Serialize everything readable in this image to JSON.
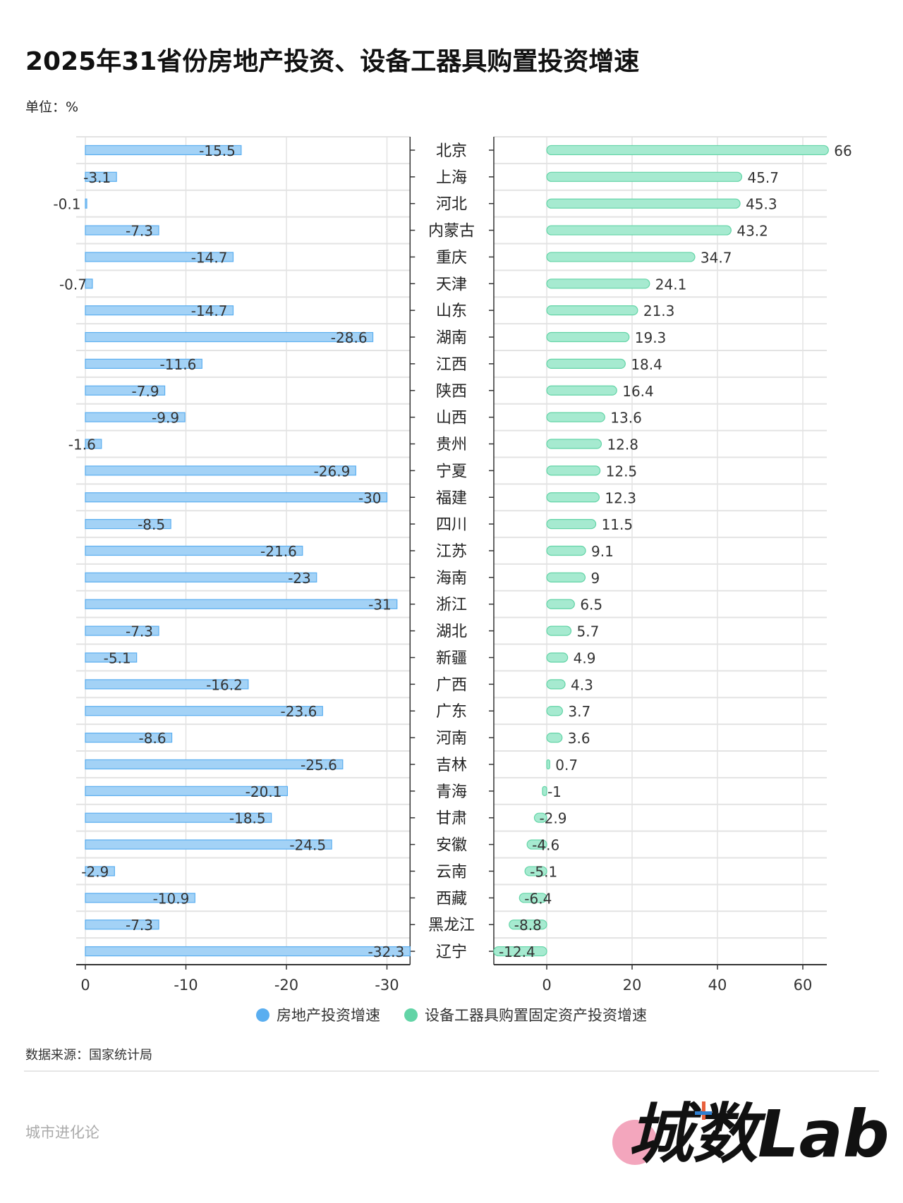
{
  "title": "2025年31省份房地产投资、设备工器具购置投资增速",
  "unit": "单位：%",
  "source": "数据来源：国家统计局",
  "brand": "城市进化论",
  "logo_text": "城数Lab.",
  "colors": {
    "real_estate": "#5aaef0",
    "real_estate_fill": "#a3d2f6",
    "equipment": "#62d4a6",
    "equipment_fill": "#a6ead0",
    "grid": "#e3e3e3",
    "axis": "#333333",
    "logo_pink": "#f3a6bd"
  },
  "chart_data": [
    {
      "type": "bar",
      "orientation": "horizontal",
      "series": [
        {
          "name": "房地产投资增速",
          "values": [
            -15.5,
            -3.1,
            -0.1,
            -7.3,
            -14.7,
            -0.7,
            -14.7,
            -28.6,
            -11.6,
            -7.9,
            -9.9,
            -1.6,
            -26.9,
            -30,
            -8.5,
            -21.6,
            -23,
            -31,
            -7.3,
            -5.1,
            -16.2,
            -23.6,
            -8.6,
            -25.6,
            -20.1,
            -18.5,
            -24.5,
            -2.9,
            -10.9,
            -7.3,
            -32.3
          ]
        }
      ],
      "categories": [
        "北京",
        "上海",
        "河北",
        "内蒙古",
        "重庆",
        "天津",
        "山东",
        "湖南",
        "江西",
        "陕西",
        "山西",
        "贵州",
        "宁夏",
        "福建",
        "四川",
        "江苏",
        "海南",
        "浙江",
        "湖北",
        "新疆",
        "广西",
        "广东",
        "河南",
        "吉林",
        "青海",
        "甘肃",
        "安徽",
        "云南",
        "西藏",
        "黑龙江",
        "辽宁"
      ],
      "xlim": [
        0,
        -32.3
      ],
      "xticks": [
        "0",
        "-10",
        "-20",
        "-30"
      ],
      "xtick_values": [
        0,
        -10,
        -20,
        -30
      ],
      "axis_reversed": true,
      "grid": true
    },
    {
      "type": "bar",
      "orientation": "horizontal",
      "series": [
        {
          "name": "设备工器具购置固定资产投资增速",
          "values": [
            66,
            45.7,
            45.3,
            43.2,
            34.7,
            24.1,
            21.3,
            19.3,
            18.4,
            16.4,
            13.6,
            12.8,
            12.5,
            12.3,
            11.5,
            9.1,
            9,
            6.5,
            5.7,
            4.9,
            4.3,
            3.7,
            3.6,
            0.7,
            -1,
            -2.9,
            -4.6,
            -5.1,
            -6.4,
            -8.8,
            -12.4
          ]
        }
      ],
      "categories": [
        "北京",
        "上海",
        "河北",
        "内蒙古",
        "重庆",
        "天津",
        "山东",
        "湖南",
        "江西",
        "陕西",
        "山西",
        "贵州",
        "宁夏",
        "福建",
        "四川",
        "江苏",
        "海南",
        "浙江",
        "湖北",
        "新疆",
        "广西",
        "广东",
        "河南",
        "吉林",
        "青海",
        "甘肃",
        "安徽",
        "云南",
        "西藏",
        "黑龙江",
        "辽宁"
      ],
      "xlim": [
        -12.4,
        66
      ],
      "xticks": [
        "0",
        "20",
        "40",
        "60"
      ],
      "xtick_values": [
        0,
        20,
        40,
        60
      ],
      "grid": true
    }
  ],
  "legend": [
    {
      "label": "房地产投资增速",
      "color": "#5aaef0"
    },
    {
      "label": "设备工器具购置固定资产投资增速",
      "color": "#62d4a6"
    }
  ]
}
